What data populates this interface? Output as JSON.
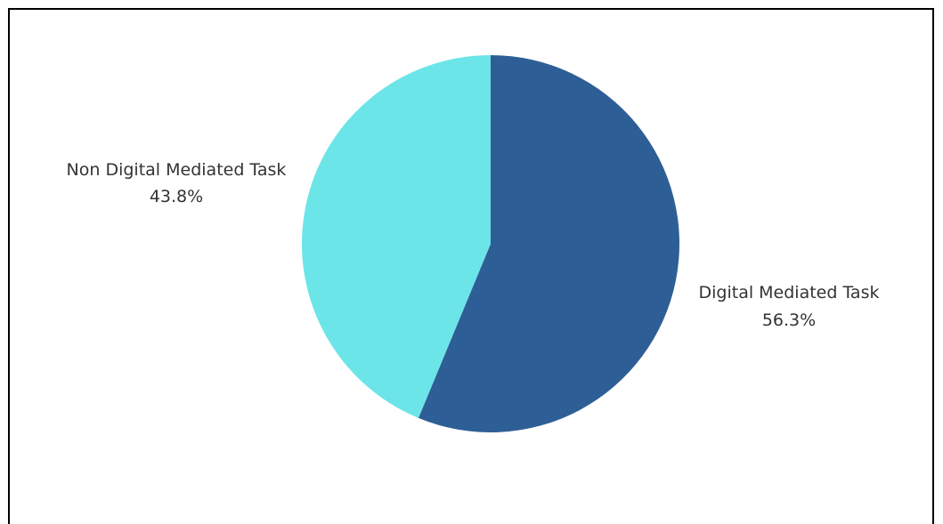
{
  "chart_data": {
    "type": "pie",
    "title": "",
    "start_angle_deg": 0,
    "direction": "clockwise",
    "slices": [
      {
        "label": "Digital Mediated Task",
        "value": 56.3,
        "display": "56.3%",
        "color": "#2e5e96"
      },
      {
        "label": "Non Digital Mediated Task",
        "value": 43.8,
        "display": "43.8%",
        "color": "#6ce5e8"
      }
    ]
  }
}
